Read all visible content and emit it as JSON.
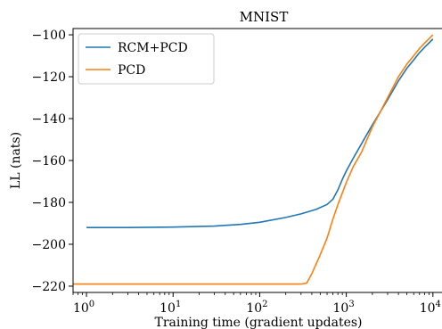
{
  "chart_data": {
    "type": "line",
    "title": "MNIST",
    "xlabel": "Training time (gradient updates)",
    "ylabel": "LL (nats)",
    "xscale": "log",
    "xlim": [
      0.7,
      14000
    ],
    "ylim": [
      -223,
      -97
    ],
    "grid": false,
    "legend_position": "top-left",
    "x_ticks": [
      {
        "value": 1,
        "base": "10",
        "exp": "0"
      },
      {
        "value": 10,
        "base": "10",
        "exp": "1"
      },
      {
        "value": 100,
        "base": "10",
        "exp": "2"
      },
      {
        "value": 1000,
        "base": "10",
        "exp": "3"
      },
      {
        "value": 10000,
        "base": "10",
        "exp": "4"
      }
    ],
    "y_ticks": [
      {
        "value": -100,
        "label": "−100"
      },
      {
        "value": -120,
        "label": "−120"
      },
      {
        "value": -140,
        "label": "−140"
      },
      {
        "value": -160,
        "label": "−160"
      },
      {
        "value": -180,
        "label": "−180"
      },
      {
        "value": -200,
        "label": "−200"
      },
      {
        "value": -220,
        "label": "−220"
      }
    ],
    "series": [
      {
        "name": "RCM+PCD",
        "color": "#1f77b4",
        "x": [
          1,
          3,
          10,
          30,
          60,
          100,
          200,
          300,
          450,
          600,
          700,
          800,
          900,
          1000,
          1200,
          1500,
          2000,
          3000,
          4000,
          5000,
          6000,
          7000,
          8000,
          10000
        ],
        "y": [
          -192,
          -192,
          -191.8,
          -191.3,
          -190.5,
          -189.5,
          -187.2,
          -185.5,
          -183.3,
          -181,
          -178.5,
          -174,
          -169,
          -165,
          -159,
          -152,
          -143,
          -131,
          -122,
          -116,
          -112,
          -108.5,
          -106,
          -102
        ]
      },
      {
        "name": "PCD",
        "color": "#ff7f0e",
        "x": [
          0.7,
          1,
          10,
          100,
          300,
          350,
          400,
          500,
          600,
          700,
          800,
          900,
          1000,
          1200,
          1500,
          2000,
          3000,
          4000,
          5000,
          6000,
          7000,
          8000,
          10000
        ],
        "y": [
          -219,
          -219,
          -219,
          -219,
          -219,
          -218.5,
          -214,
          -205,
          -197,
          -188,
          -181,
          -175.5,
          -170.5,
          -163,
          -156,
          -144,
          -130,
          -120,
          -114,
          -110,
          -106.5,
          -104,
          -100
        ]
      }
    ]
  }
}
